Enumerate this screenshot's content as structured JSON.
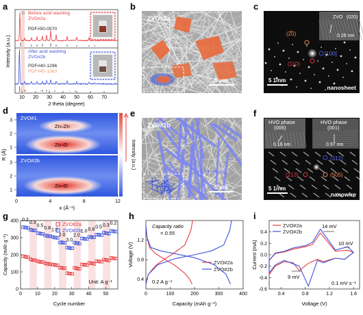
{
  "panels": {
    "a": {
      "letter": "a",
      "top_legend": "Before acid washing",
      "top_sample": "ZVO#2a",
      "top_pdf": "PDF#50-0570",
      "bottom_legend": "After acid washing",
      "bottom_sample": "ZVO#2b",
      "bottom_pdf1": "PDF#40-1296",
      "bottom_pdf2": "PDF#45-1363",
      "star": "☆",
      "xlabel": "2 theta (degree)",
      "ylabel": "Intensity (a.u.)",
      "xticks": [
        "10",
        "20",
        "30",
        "40",
        "50",
        "60",
        "70"
      ]
    },
    "b": {
      "letter": "b",
      "sample": "ZVO#2a",
      "phase": "ZVO",
      "scale": "5 μm"
    },
    "c": {
      "letter": "c",
      "inset_title": "ZVO",
      "inset_plane": "(020)",
      "inset_d": "0.26 nm",
      "spot1": "(2̅0)",
      "spot2": "(110)",
      "spot3": "[100]",
      "scale": "5 1/nm",
      "morph": "nanosheet"
    },
    "d": {
      "letter": "d",
      "top_sample": "ZVO#1",
      "top_label1": "Zn–Zn",
      "top_label2": "Zn–O",
      "bottom_sample": "ZVO#2b",
      "bottom_label": "Zn–O",
      "xlabel": "κ (Å⁻¹)",
      "ylabel": "R (Å)",
      "colorbar_label": "Intensity (a.u.)",
      "xticks": [
        "0",
        "4",
        "8",
        "12"
      ],
      "yticks": [
        "3",
        "2",
        "1"
      ]
    },
    "e": {
      "letter": "e",
      "sample": "ZVO#2b",
      "phase": "HVO phase",
      "scale": "5 μm"
    },
    "f": {
      "letter": "f",
      "inset1_title": "HVO phase",
      "inset1_plane": "(006)",
      "inset1_d": "0.16 nm",
      "inset2_title": "HVO phase",
      "inset2_plane": "(001)",
      "inset2_d": "0.97 nm",
      "spot1": "(312)",
      "spot2": "(213)",
      "spot3": "(505)",
      "scale": "5 1/nm",
      "morph": "nanowire"
    },
    "g": {
      "letter": "g",
      "ylabel": "Capacity (mAh g⁻¹)",
      "xlabel": "Cycle number",
      "unit_label": "Unit: A g⁻¹",
      "rate_labels": [
        "0.2",
        "0.3",
        "0.5",
        "0.8",
        "1.0",
        "2.0",
        "3.0",
        "2.0",
        "1.0",
        "0.8",
        "0.5",
        "0.3",
        "0.2"
      ]
    },
    "h": {
      "letter": "h",
      "ratio_title": "Capacity ratio",
      "ratio_value": "= 0.55",
      "current_label": "0.2 A g⁻¹",
      "xlabel": "Capacity (mAh g⁻¹)",
      "ylabel": "Voltage (V)"
    },
    "i": {
      "letter": "i",
      "mv_top": "14 mV",
      "mv_right": "10 mV",
      "mv_bottom": "9 mV",
      "scan_label": "0.1 mV s⁻¹",
      "xlabel": "Voltage (V)",
      "ylabel": "Current (mA)"
    }
  },
  "colors": {
    "red": "#e8393d",
    "blue": "#3c53d8",
    "orange": "#f08c5a",
    "orange_fill": "#e8683a",
    "violet": "#6a6cf0",
    "pale_red": "#f6c9c9",
    "pdf2": "#f3966a"
  },
  "chart_data": [
    {
      "type": "line",
      "panel": "a",
      "xlabel": "2 theta (degree)",
      "ylabel": "Intensity (a.u.)",
      "xlim": [
        5,
        80
      ],
      "series": [
        {
          "name": "ZVO#2a",
          "x": [
            8.5,
            12,
            17,
            21,
            25,
            28,
            31,
            35,
            43,
            50,
            59,
            63
          ],
          "y": [
            1.0,
            0.08,
            0.1,
            0.12,
            0.15,
            0.18,
            0.35,
            0.2,
            0.15,
            0.12,
            0.1,
            0.08
          ]
        },
        {
          "name": "ZVO#2b",
          "x": [
            8.2,
            12,
            17,
            21,
            25,
            28,
            31,
            35,
            43,
            50,
            59,
            63
          ],
          "y": [
            1.0,
            0.06,
            0.06,
            0.07,
            0.07,
            0.09,
            0.12,
            0.08,
            0.07,
            0.06,
            0.05,
            0.05
          ]
        }
      ]
    },
    {
      "type": "heatmap",
      "panel": "d",
      "xlabel": "κ (Å⁻¹)",
      "ylabel": "R (Å)",
      "xlim": [
        0,
        12
      ],
      "ylim": [
        0.5,
        3.5
      ],
      "series": [
        {
          "name": "ZVO#1",
          "peaks": [
            {
              "label": "Zn–O",
              "k": 5.5,
              "R": 1.5
            },
            {
              "label": "Zn–Zn",
              "k": 5.8,
              "R": 2.7
            }
          ]
        },
        {
          "name": "ZVO#2b",
          "peaks": [
            {
              "label": "Zn–O",
              "k": 5.5,
              "R": 1.5
            }
          ]
        }
      ]
    },
    {
      "type": "scatter",
      "panel": "g",
      "xlabel": "Cycle number",
      "ylabel": "Capacity (mAh g⁻¹)",
      "xlim": [
        0,
        57
      ],
      "ylim": [
        0,
        400
      ],
      "series": [
        {
          "name": "ZVO#2a",
          "values": [
            190,
            172,
            161,
            150,
            143,
            125,
            93,
            123,
            144,
            152,
            163,
            172,
            182
          ]
        },
        {
          "name": "ZVO#2b",
          "values": [
            360,
            345,
            327,
            312,
            303,
            273,
            242,
            270,
            295,
            305,
            318,
            329,
            340
          ]
        }
      ],
      "rates": [
        0.2,
        0.3,
        0.5,
        0.8,
        1.0,
        2.0,
        3.0,
        2.0,
        1.0,
        0.8,
        0.5,
        0.3,
        0.2
      ]
    },
    {
      "type": "line",
      "panel": "h",
      "xlabel": "Capacity (mAh g⁻¹)",
      "ylabel": "Voltage (V)",
      "xlim": [
        0,
        400
      ],
      "ylim": [
        0.2,
        1.6
      ],
      "series": [
        {
          "name": "ZVO#2a discharge",
          "x": [
            0,
            5,
            15,
            40,
            80,
            120,
            160,
            180,
            190
          ],
          "y": [
            1.48,
            1.25,
            1.05,
            0.92,
            0.8,
            0.68,
            0.52,
            0.4,
            0.3
          ]
        },
        {
          "name": "ZVO#2a charge",
          "x": [
            0,
            10,
            40,
            80,
            120,
            160,
            185,
            192
          ],
          "y": [
            0.3,
            0.5,
            0.68,
            0.82,
            0.95,
            1.1,
            1.4,
            1.6
          ]
        },
        {
          "name": "ZVO#2b discharge",
          "x": [
            0,
            5,
            20,
            60,
            120,
            200,
            280,
            330,
            348
          ],
          "y": [
            1.5,
            1.25,
            1.05,
            0.98,
            0.92,
            0.84,
            0.7,
            0.5,
            0.3
          ]
        },
        {
          "name": "ZVO#2b charge",
          "x": [
            0,
            10,
            50,
            120,
            200,
            270,
            320,
            345,
            352
          ],
          "y": [
            0.3,
            0.5,
            0.7,
            0.82,
            0.9,
            0.98,
            1.1,
            1.4,
            1.6
          ]
        }
      ]
    },
    {
      "type": "line",
      "panel": "i",
      "xlabel": "Voltage (V)",
      "ylabel": "Current (mA)",
      "xlim": [
        0.2,
        1.7
      ],
      "ylim": [
        -0.6,
        0.6
      ],
      "series": [
        {
          "name": "ZVO#2a",
          "x": [
            0.2,
            0.3,
            0.45,
            0.6,
            0.7,
            0.85,
            1.0,
            1.1,
            1.3,
            1.45,
            1.5,
            1.6,
            1.5,
            1.3,
            1.05,
            0.92,
            0.8,
            0.6,
            0.45,
            0.3,
            0.2
          ],
          "y": [
            -0.35,
            -0.2,
            -0.12,
            -0.14,
            -0.28,
            -0.15,
            -0.08,
            -0.12,
            -0.06,
            -0.08,
            -0.04,
            0.04,
            0.08,
            0.06,
            0.38,
            0.18,
            0.14,
            0.1,
            0.05,
            0.02,
            -0.1
          ]
        },
        {
          "name": "ZVO#2b",
          "x": [
            0.2,
            0.3,
            0.45,
            0.6,
            0.7,
            0.85,
            1.0,
            1.1,
            1.3,
            1.45,
            1.5,
            1.6,
            1.5,
            1.3,
            1.05,
            0.92,
            0.8,
            0.6,
            0.45,
            0.3,
            0.2
          ],
          "y": [
            -0.32,
            -0.18,
            -0.1,
            -0.16,
            -0.2,
            -0.55,
            -0.1,
            -0.14,
            -0.06,
            -0.08,
            -0.04,
            0.04,
            0.14,
            0.08,
            0.45,
            0.22,
            0.16,
            0.12,
            0.06,
            0.03,
            -0.1
          ]
        }
      ]
    }
  ]
}
